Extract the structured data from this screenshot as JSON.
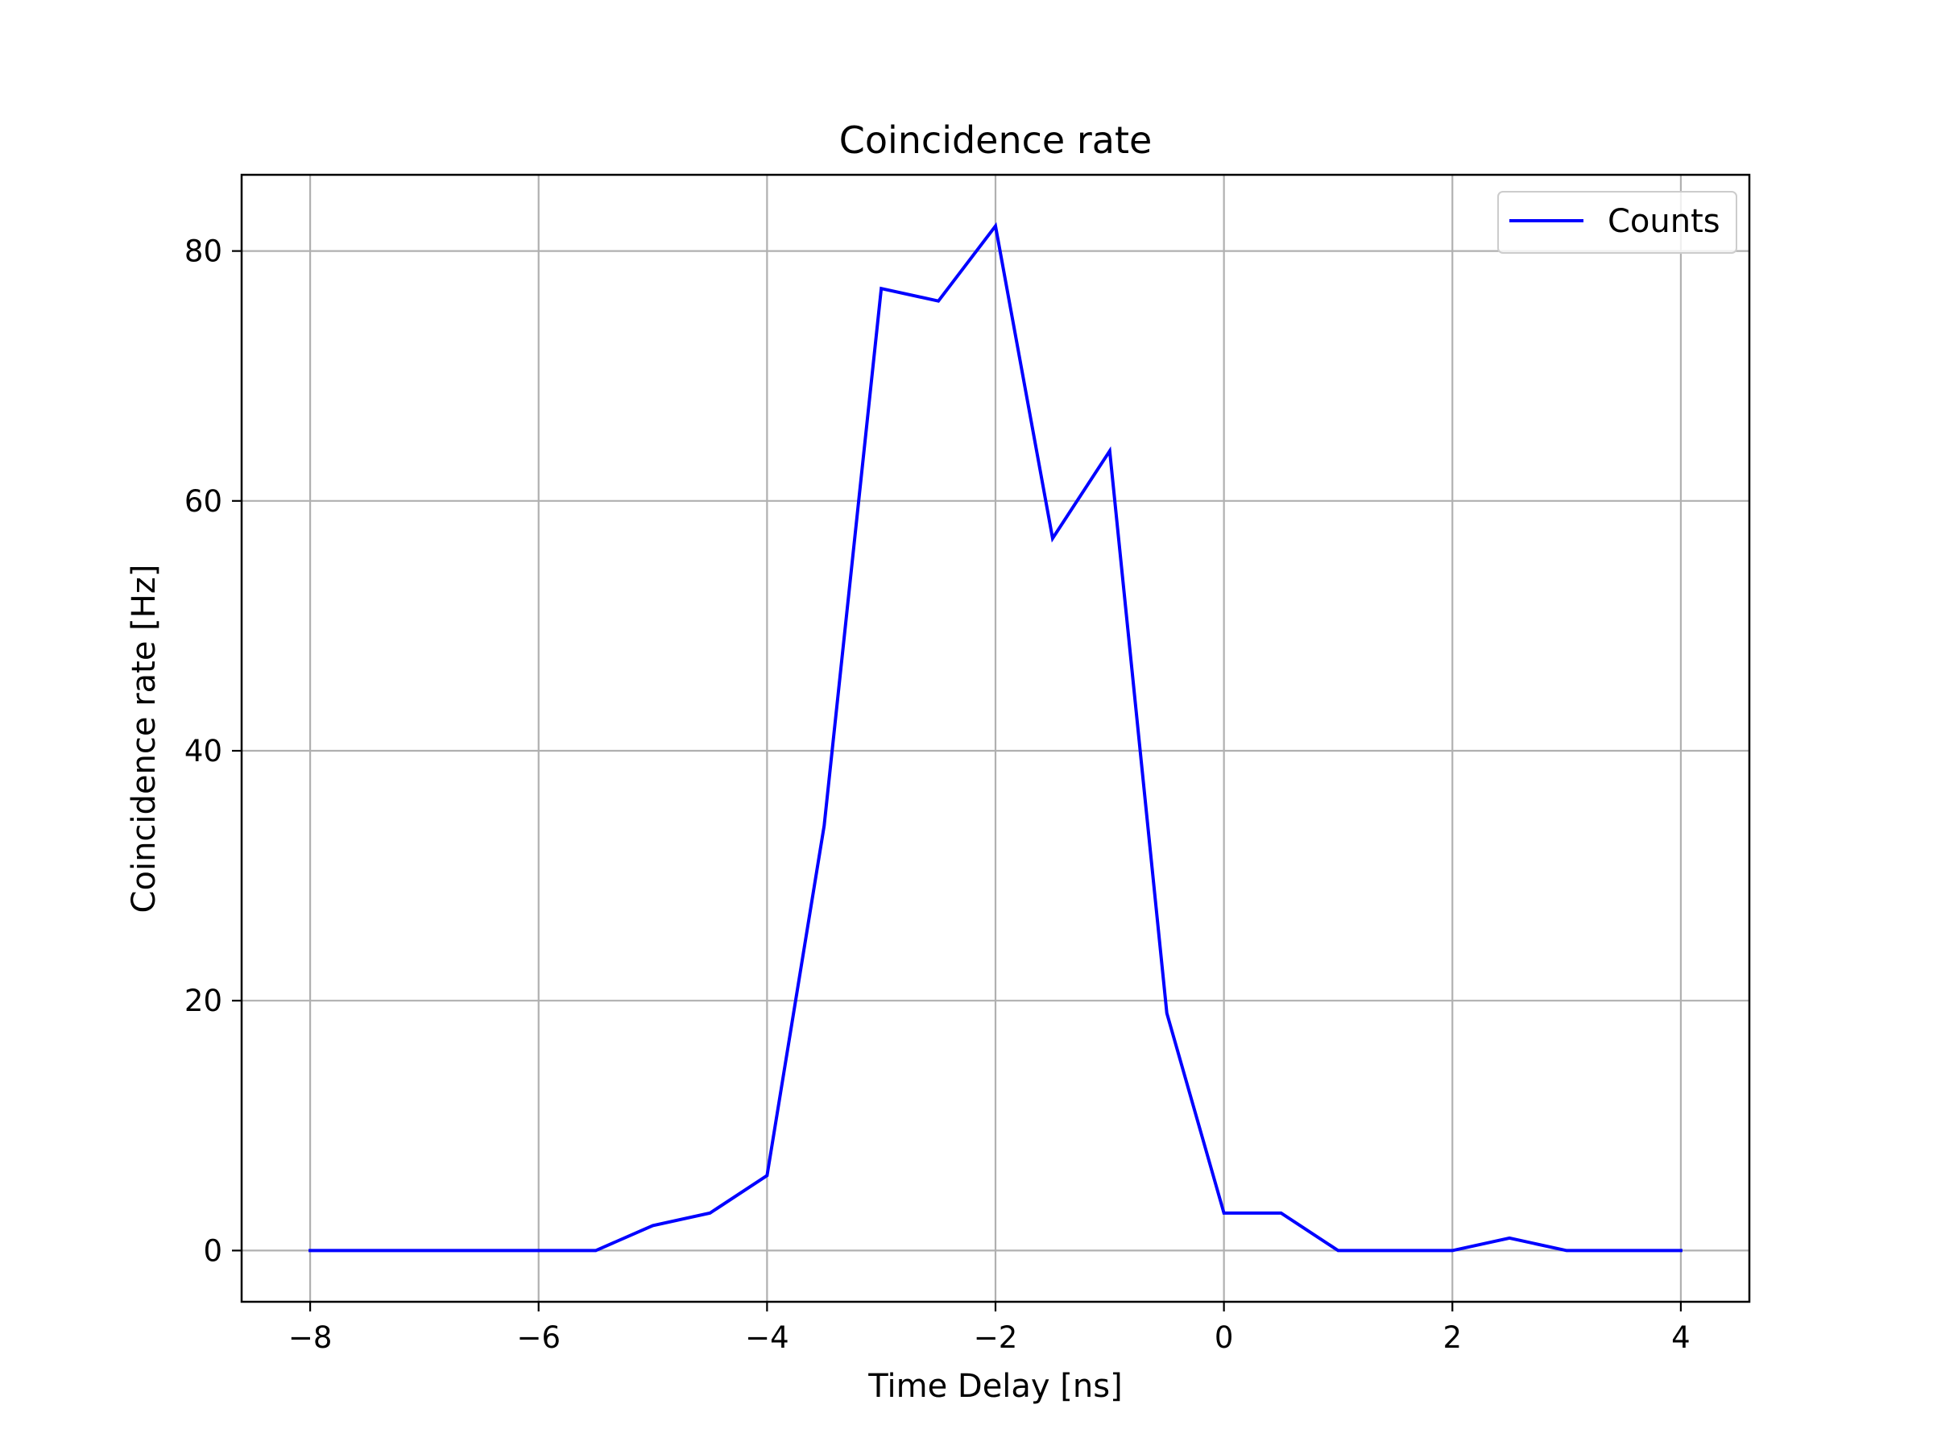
{
  "chart_data": {
    "type": "line",
    "title": "Coincidence rate",
    "xlabel": "Time Delay [ns]",
    "ylabel": "Coincidence rate [Hz]",
    "xlim": [
      -8.6,
      4.6
    ],
    "ylim": [
      -4.1,
      86.1
    ],
    "xticks": [
      -8,
      -6,
      -4,
      -2,
      0,
      2,
      4
    ],
    "xtick_labels": [
      "−8",
      "−6",
      "−4",
      "−2",
      "0",
      "2",
      "4"
    ],
    "yticks": [
      0,
      20,
      40,
      60,
      80
    ],
    "ytick_labels": [
      "0",
      "20",
      "40",
      "60",
      "80"
    ],
    "grid": true,
    "legend_position": "top-right",
    "series": [
      {
        "name": "Counts",
        "color": "#0000ff",
        "x": [
          -8,
          -7.5,
          -7,
          -6.5,
          -6,
          -5.5,
          -5,
          -4.5,
          -4,
          -3.5,
          -3,
          -2.5,
          -2,
          -1.5,
          -1,
          -0.5,
          0,
          0.5,
          1,
          1.5,
          2,
          2.5,
          3,
          3.5,
          4
        ],
        "y": [
          0,
          0,
          0,
          0,
          0,
          0,
          2,
          3,
          6,
          34,
          77,
          76,
          82,
          57,
          64,
          19,
          3,
          3,
          0,
          0,
          0,
          1,
          0,
          0,
          0
        ]
      }
    ]
  }
}
